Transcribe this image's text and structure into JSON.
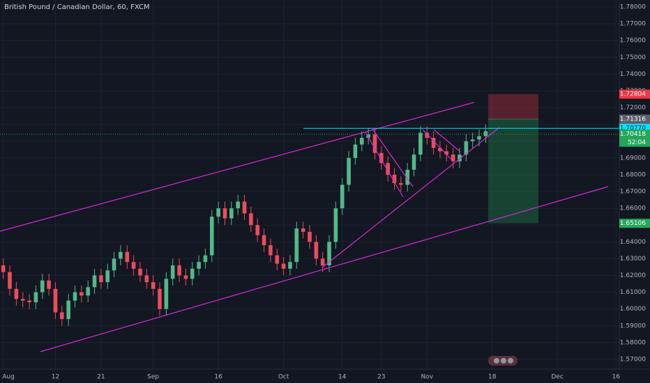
{
  "chart_data": {
    "type": "candlestick",
    "title": "British Pound / Canadian Dollar, 60, FXCM",
    "categories": [
      "Aug",
      null,
      null,
      null,
      null,
      null,
      null,
      null,
      "12",
      null,
      null,
      null,
      null,
      null,
      null,
      "21",
      null,
      null,
      null,
      null,
      null,
      null,
      null,
      "Sep",
      null,
      null,
      null,
      null,
      null,
      null,
      null,
      null,
      null,
      "16",
      null,
      null,
      null,
      null,
      null,
      null,
      null,
      null,
      null,
      "Oct",
      null,
      null,
      null,
      null,
      null,
      null,
      null,
      null,
      "14",
      null,
      null,
      null,
      null,
      null,
      "23",
      null,
      null,
      null,
      null,
      null,
      null,
      "Nov",
      null,
      null,
      null,
      null,
      null,
      null,
      null,
      null,
      null,
      "18",
      null,
      null,
      null,
      null,
      null,
      null,
      null,
      null,
      null,
      "Dec",
      null,
      null,
      null,
      null,
      null,
      null,
      null,
      null,
      "16"
    ],
    "open": [
      1.626,
      1.622,
      1.612,
      1.606,
      1.605,
      1.604,
      1.61,
      1.617,
      1.612,
      1.598,
      1.594,
      1.605,
      1.61,
      1.608,
      1.613,
      1.62,
      1.616,
      1.623,
      1.63,
      1.634,
      1.628,
      1.624,
      1.62,
      1.616,
      1.612,
      1.6,
      1.618,
      1.626,
      1.62,
      1.618,
      1.624,
      1.628,
      1.632,
      1.655,
      1.66,
      1.654,
      1.66,
      1.664,
      1.657,
      1.65,
      1.644,
      1.638,
      1.632,
      1.627,
      1.624,
      1.628,
      1.648,
      1.646,
      1.64,
      1.63,
      1.626,
      1.64,
      1.66,
      1.674,
      1.69,
      1.698,
      1.702,
      1.704,
      1.693,
      1.687,
      1.68,
      1.675,
      1.674,
      1.683,
      1.692,
      1.705,
      1.702,
      1.696,
      1.694,
      1.692,
      1.688,
      1.692,
      1.7,
      1.701,
      1.703,
      null,
      null,
      null,
      null,
      null,
      null,
      null,
      null,
      null,
      null,
      null,
      null,
      null,
      null,
      null,
      null,
      null,
      null,
      null,
      null
    ],
    "high": [
      1.63,
      1.626,
      1.616,
      1.61,
      1.609,
      1.614,
      1.621,
      1.621,
      1.616,
      1.602,
      1.609,
      1.614,
      1.614,
      1.617,
      1.624,
      1.624,
      1.627,
      1.634,
      1.638,
      1.638,
      1.632,
      1.628,
      1.624,
      1.62,
      1.616,
      1.622,
      1.63,
      1.63,
      1.624,
      1.628,
      1.632,
      1.636,
      1.659,
      1.664,
      1.664,
      1.664,
      1.668,
      1.668,
      1.661,
      1.654,
      1.648,
      1.642,
      1.636,
      1.631,
      1.632,
      1.652,
      1.652,
      1.65,
      1.644,
      1.634,
      1.644,
      1.664,
      1.678,
      1.694,
      1.702,
      1.706,
      1.708,
      1.708,
      1.697,
      1.691,
      1.684,
      1.679,
      1.687,
      1.696,
      1.709,
      1.709,
      1.706,
      1.7,
      1.698,
      1.696,
      1.696,
      1.704,
      1.705,
      1.707,
      1.71,
      null,
      null,
      null,
      null,
      null,
      null,
      null,
      null,
      null,
      null,
      null,
      null,
      null,
      null,
      null,
      null,
      null,
      null,
      null,
      null
    ],
    "low": [
      1.618,
      1.608,
      1.602,
      1.601,
      1.6,
      1.6,
      1.606,
      1.608,
      1.594,
      1.59,
      1.59,
      1.601,
      1.604,
      1.604,
      1.609,
      1.612,
      1.612,
      1.619,
      1.626,
      1.624,
      1.62,
      1.616,
      1.612,
      1.608,
      1.596,
      1.596,
      1.614,
      1.616,
      1.614,
      1.614,
      1.62,
      1.624,
      1.628,
      1.651,
      1.65,
      1.65,
      1.656,
      1.653,
      1.646,
      1.64,
      1.634,
      1.628,
      1.623,
      1.62,
      1.62,
      1.624,
      1.642,
      1.636,
      1.626,
      1.622,
      1.622,
      1.636,
      1.656,
      1.67,
      1.686,
      1.694,
      1.698,
      1.689,
      1.683,
      1.676,
      1.671,
      1.67,
      1.67,
      1.679,
      1.688,
      1.698,
      1.692,
      1.69,
      1.688,
      1.684,
      1.684,
      1.688,
      1.696,
      1.697,
      1.699,
      null,
      null,
      null,
      null,
      null,
      null,
      null,
      null,
      null,
      null,
      null,
      null,
      null,
      null,
      null,
      null,
      null,
      null,
      null,
      null
    ],
    "close": [
      1.622,
      1.612,
      1.606,
      1.605,
      1.604,
      1.61,
      1.617,
      1.612,
      1.598,
      1.594,
      1.605,
      1.61,
      1.608,
      1.613,
      1.62,
      1.616,
      1.623,
      1.63,
      1.634,
      1.628,
      1.624,
      1.62,
      1.616,
      1.612,
      1.6,
      1.618,
      1.626,
      1.62,
      1.618,
      1.624,
      1.628,
      1.632,
      1.655,
      1.66,
      1.654,
      1.66,
      1.664,
      1.657,
      1.65,
      1.644,
      1.638,
      1.632,
      1.627,
      1.624,
      1.628,
      1.648,
      1.646,
      1.64,
      1.63,
      1.626,
      1.64,
      1.66,
      1.674,
      1.69,
      1.698,
      1.702,
      1.704,
      1.693,
      1.687,
      1.68,
      1.675,
      1.674,
      1.683,
      1.692,
      1.705,
      1.702,
      1.696,
      1.694,
      1.692,
      1.688,
      1.692,
      1.7,
      1.701,
      1.703,
      1.706,
      null,
      null,
      null,
      null,
      null,
      null,
      null,
      null,
      null,
      null,
      null,
      null,
      null,
      null,
      null,
      null,
      null,
      null,
      null,
      null
    ],
    "up_color": "#53b987",
    "down_color": "#eb4d5c",
    "ylim": [
      1.57,
      1.78
    ],
    "yticks": [
      {
        "value": 1.57,
        "label": "1.57000"
      },
      {
        "value": 1.58,
        "label": "1.58000"
      },
      {
        "value": 1.59,
        "label": "1.59000"
      },
      {
        "value": 1.6,
        "label": "1.60000"
      },
      {
        "value": 1.61,
        "label": "1.61000"
      },
      {
        "value": 1.62,
        "label": "1.62000"
      },
      {
        "value": 1.63,
        "label": "1.63000"
      },
      {
        "value": 1.64,
        "label": "1.64000"
      },
      {
        "value": 1.65,
        "label": "1.65000"
      },
      {
        "value": 1.66,
        "label": "1.66000"
      },
      {
        "value": 1.67,
        "label": "1.67000"
      },
      {
        "value": 1.68,
        "label": "1.68000"
      },
      {
        "value": 1.69,
        "label": "1.69000"
      },
      {
        "value": 1.7,
        "label": "1.70000"
      },
      {
        "value": 1.71,
        "label": "1.71000"
      },
      {
        "value": 1.72,
        "label": "1.72000"
      },
      {
        "value": 1.73,
        "label": "1.73000"
      },
      {
        "value": 1.74,
        "label": "1.74000"
      },
      {
        "value": 1.75,
        "label": "1.75000"
      },
      {
        "value": 1.76,
        "label": "1.76000"
      },
      {
        "value": 1.77,
        "label": "1.77000"
      },
      {
        "value": 1.78,
        "label": "1.78000"
      }
    ],
    "grid": true,
    "price_markers": [
      {
        "value": 1.72804,
        "label": "1.72804",
        "color": "#f23645"
      },
      {
        "value": 1.71316,
        "label": "1.71316",
        "color": "#5d606b"
      },
      {
        "value": 1.7077,
        "label": "1.70770",
        "color": "#00e5ff"
      },
      {
        "value": 1.70418,
        "label": "1.70418",
        "color": "#26a65b"
      },
      {
        "value": 1.65106,
        "label": "1.65106",
        "color": "#26a65b"
      }
    ],
    "countdown": "52:04"
  }
}
